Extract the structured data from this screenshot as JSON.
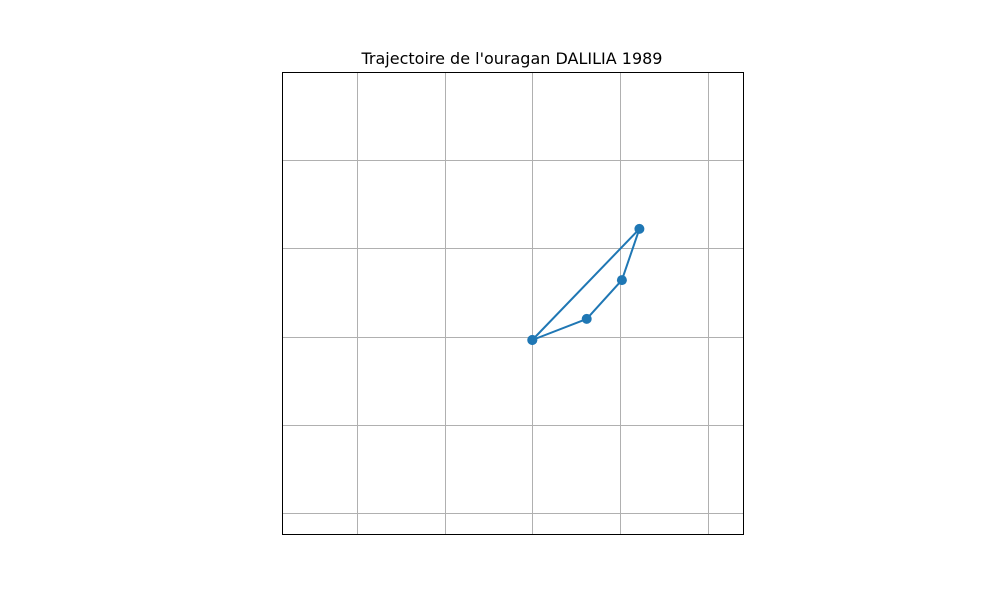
{
  "chart_data": {
    "type": "line",
    "title": "Trajectoire de l'ouragan DALILIA 1989",
    "xlabel": "",
    "ylabel": "",
    "xlim": [
      -4.2,
      22
    ],
    "ylim": [
      -1.2,
      25
    ],
    "grid": true,
    "grid_x": [
      0,
      5,
      10,
      15,
      20
    ],
    "grid_y": [
      0,
      5,
      10,
      15,
      20
    ],
    "series": [
      {
        "x": [
          10,
          13.1,
          15.1,
          16.1,
          10
        ],
        "y": [
          9.8,
          11.0,
          13.2,
          16.1,
          9.8
        ]
      }
    ],
    "colors": {
      "series": "#1f77b4",
      "grid": "#b0b0b0"
    }
  }
}
